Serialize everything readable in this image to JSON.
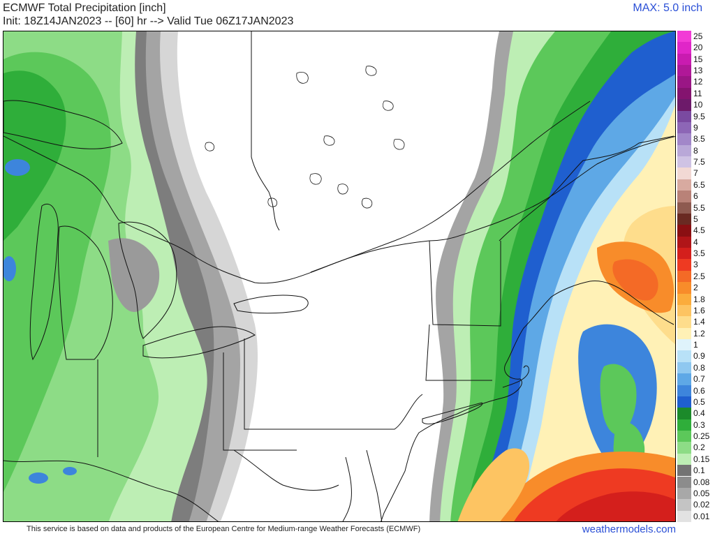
{
  "header": {
    "title": "ECMWF Total Precipitation [inch]",
    "subtitle": "Init: 18Z14JAN2023 -- [60] hr --> Valid Tue 06Z17JAN2023",
    "max_label": "MAX: 5.0 inch"
  },
  "colorbar": {
    "levels": [
      {
        "label": "25",
        "color": "#f23bd6"
      },
      {
        "label": "20",
        "color": "#e026c8"
      },
      {
        "label": "15",
        "color": "#c91bb0"
      },
      {
        "label": "13",
        "color": "#b01898"
      },
      {
        "label": "12",
        "color": "#9a1685"
      },
      {
        "label": "11",
        "color": "#84136f"
      },
      {
        "label": "10",
        "color": "#6d1a6a"
      },
      {
        "label": "9.5",
        "color": "#7a4aa0"
      },
      {
        "label": "9",
        "color": "#8d66b6"
      },
      {
        "label": "8.5",
        "color": "#a287c9"
      },
      {
        "label": "8",
        "color": "#b9a8d8"
      },
      {
        "label": "7.5",
        "color": "#cfc3e4"
      },
      {
        "label": "7",
        "color": "#f2d9d4"
      },
      {
        "label": "6.5",
        "color": "#d8aaa0"
      },
      {
        "label": "6",
        "color": "#b98278"
      },
      {
        "label": "5.5",
        "color": "#8e5a50"
      },
      {
        "label": "5",
        "color": "#6a2a22"
      },
      {
        "label": "4.5",
        "color": "#8a0f12"
      },
      {
        "label": "4",
        "color": "#b01518"
      },
      {
        "label": "3.5",
        "color": "#d41f1c"
      },
      {
        "label": "3",
        "color": "#ee3a22"
      },
      {
        "label": "2.5",
        "color": "#f46a26"
      },
      {
        "label": "2",
        "color": "#f88c2a"
      },
      {
        "label": "1.8",
        "color": "#fbac3c"
      },
      {
        "label": "1.6",
        "color": "#fdc462"
      },
      {
        "label": "1.4",
        "color": "#fedd8c"
      },
      {
        "label": "1.2",
        "color": "#fff1b6"
      },
      {
        "label": "1",
        "color": "#dff3fb"
      },
      {
        "label": "0.9",
        "color": "#b8e1f7"
      },
      {
        "label": "0.8",
        "color": "#8fc8f0"
      },
      {
        "label": "0.7",
        "color": "#5ea8e6"
      },
      {
        "label": "0.6",
        "color": "#3d85dc"
      },
      {
        "label": "0.5",
        "color": "#1f5fcf"
      },
      {
        "label": "0.4",
        "color": "#1b8a2a"
      },
      {
        "label": "0.3",
        "color": "#2fae3a"
      },
      {
        "label": "0.25",
        "color": "#5cc85a"
      },
      {
        "label": "0.2",
        "color": "#8ddc86"
      },
      {
        "label": "0.15",
        "color": "#bdeeb4"
      },
      {
        "label": "0.1",
        "color": "#737373"
      },
      {
        "label": "0.08",
        "color": "#8c8c8c"
      },
      {
        "label": "0.05",
        "color": "#a8a8a8"
      },
      {
        "label": "0.02",
        "color": "#c4c4c4"
      },
      {
        "label": "0.01",
        "color": "#e2e2e2"
      }
    ]
  },
  "footer": {
    "attribution": "This service is based on data and products of the European Centre for Medium-range Weather Forecasts (ECMWF)",
    "brand": "weathermodels.com"
  }
}
